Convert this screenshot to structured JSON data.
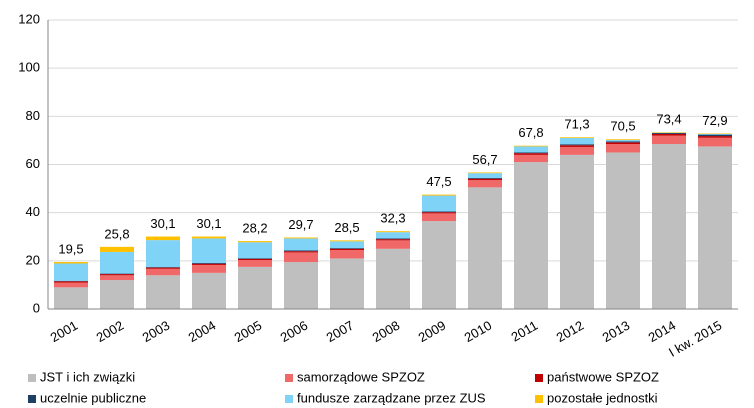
{
  "chart_data": {
    "type": "stacked_bar",
    "categories": [
      "2001",
      "2002",
      "2003",
      "2004",
      "2005",
      "2006",
      "2007",
      "2008",
      "2009",
      "2010",
      "2011",
      "2012",
      "2013",
      "2014",
      "I kw. 2015"
    ],
    "series": [
      {
        "name": "JST i ich związki",
        "color": "#bfbfbf",
        "values": [
          9,
          12,
          14,
          15,
          17.5,
          19.5,
          21,
          25,
          36.5,
          50.5,
          61,
          64,
          65,
          68.5,
          67.5
        ]
      },
      {
        "name": "samorządowe SPZOZ",
        "color": "#f06868",
        "values": [
          2,
          2,
          2.7,
          3.3,
          2.8,
          4,
          3.5,
          3.5,
          3.2,
          3,
          3,
          3.3,
          3.5,
          3.5,
          3.6
        ]
      },
      {
        "name": "państwowe SPZOZ",
        "color": "#c00000",
        "values": [
          0.5,
          0.5,
          0.5,
          0.5,
          0.5,
          0.5,
          0.5,
          0.5,
          0.5,
          0.6,
          0.7,
          0.7,
          0.7,
          0.7,
          0.7
        ]
      },
      {
        "name": "uczelnie publiczne",
        "color": "#1f3f66",
        "values": [
          0.2,
          0.2,
          0.2,
          0.3,
          0.3,
          0.3,
          0.3,
          0.3,
          0.3,
          0.3,
          0.3,
          0.4,
          0.4,
          0.4,
          0.6
        ]
      },
      {
        "name": "fundusze zarządzane przez ZUS",
        "color": "#7fd3f7",
        "values": [
          7.2,
          9,
          11.2,
          10.2,
          6.6,
          5,
          2.8,
          2.6,
          6.6,
          2,
          2.5,
          2.6,
          0.6,
          0.1,
          0.3
        ]
      },
      {
        "name": "pozostałe jednostki",
        "color": "#ffc000",
        "values": [
          0.6,
          2.1,
          1.5,
          0.8,
          0.5,
          0.4,
          0.4,
          0.4,
          0.4,
          0.3,
          0.3,
          0.3,
          0.3,
          0.2,
          0.2
        ]
      }
    ],
    "totals": [
      19.5,
      25.8,
      30.1,
      30.1,
      28.2,
      29.7,
      28.5,
      32.3,
      47.5,
      56.7,
      67.8,
      71.3,
      70.5,
      73.4,
      72.9
    ],
    "total_labels": [
      "19,5",
      "25,8",
      "30,1",
      "30,1",
      "28,2",
      "29,7",
      "28,5",
      "32,3",
      "47,5",
      "56,7",
      "67,8",
      "71,3",
      "70,5",
      "73,4",
      "72,9"
    ],
    "ylim": [
      0,
      120
    ],
    "yticks": [
      0,
      20,
      40,
      60,
      80,
      100,
      120
    ],
    "grid": true
  }
}
